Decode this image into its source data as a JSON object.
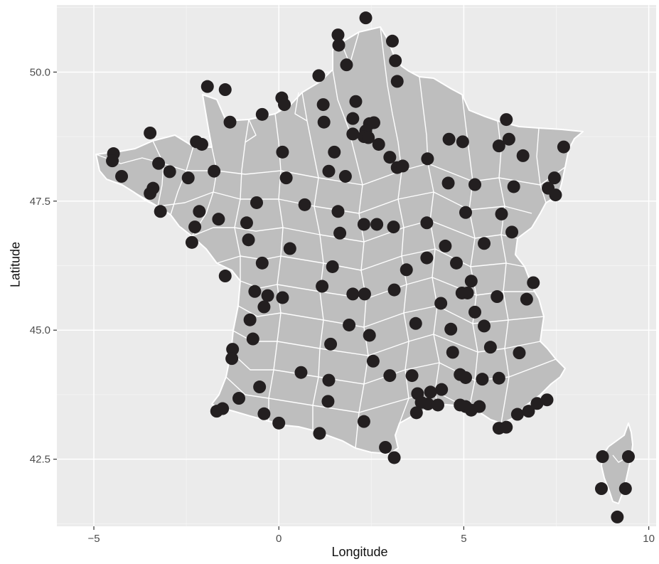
{
  "colors": {
    "panel_background": "#ebebeb",
    "grid_major": "#ffffff",
    "grid_minor": "#f4f4f4",
    "land_fill": "#bebebe",
    "boundary_stroke": "#ffffff",
    "point_fill": "#231f20",
    "tick_text": "#4d4d4d",
    "title_text": "#111111"
  },
  "chart_data": {
    "type": "scatter",
    "xlabel": "Longitude",
    "ylabel": "Latitude",
    "xlim": [
      -6.0,
      10.2
    ],
    "ylim": [
      41.2,
      51.3
    ],
    "x_ticks": [
      -5,
      0,
      5,
      10
    ],
    "x_tick_labels": [
      "−5",
      "0",
      "5",
      "10"
    ],
    "y_ticks": [
      42.5,
      45.0,
      47.5,
      50.0
    ],
    "y_tick_labels": [
      "42.5",
      "45.0",
      "47.5",
      "50.0"
    ],
    "grid": true,
    "basemap": "France departments (grey polygons with white boundaries)",
    "points": [
      [
        2.35,
        51.05
      ],
      [
        1.6,
        50.72
      ],
      [
        1.62,
        50.52
      ],
      [
        3.07,
        50.6
      ],
      [
        3.15,
        50.22
      ],
      [
        1.83,
        50.14
      ],
      [
        3.2,
        49.82
      ],
      [
        1.08,
        49.93
      ],
      [
        -1.93,
        49.72
      ],
      [
        -1.45,
        49.66
      ],
      [
        0.08,
        49.5
      ],
      [
        0.15,
        49.37
      ],
      [
        -0.45,
        49.18
      ],
      [
        1.2,
        49.37
      ],
      [
        2.08,
        49.43
      ],
      [
        -1.32,
        49.03
      ],
      [
        1.22,
        49.03
      ],
      [
        2.0,
        49.1
      ],
      [
        2.45,
        49.0
      ],
      [
        2.57,
        49.02
      ],
      [
        2.35,
        48.86
      ],
      [
        2.3,
        48.75
      ],
      [
        2.42,
        48.73
      ],
      [
        2.0,
        48.8
      ],
      [
        2.7,
        48.6
      ],
      [
        -3.48,
        48.82
      ],
      [
        -2.23,
        48.65
      ],
      [
        -2.08,
        48.6
      ],
      [
        -4.47,
        48.42
      ],
      [
        -4.5,
        48.28
      ],
      [
        -4.25,
        47.98
      ],
      [
        -3.25,
        48.23
      ],
      [
        -2.95,
        48.07
      ],
      [
        -2.45,
        47.95
      ],
      [
        -3.4,
        47.75
      ],
      [
        -3.48,
        47.65
      ],
      [
        -3.2,
        47.3
      ],
      [
        -1.75,
        48.08
      ],
      [
        0.1,
        48.45
      ],
      [
        1.5,
        48.45
      ],
      [
        1.35,
        48.08
      ],
      [
        1.8,
        47.98
      ],
      [
        0.2,
        47.95
      ],
      [
        3.0,
        48.35
      ],
      [
        3.2,
        48.15
      ],
      [
        3.35,
        48.18
      ],
      [
        4.02,
        48.32
      ],
      [
        4.6,
        48.7
      ],
      [
        4.97,
        48.65
      ],
      [
        6.15,
        49.08
      ],
      [
        6.22,
        48.7
      ],
      [
        5.95,
        48.57
      ],
      [
        6.6,
        48.38
      ],
      [
        7.7,
        48.55
      ],
      [
        7.45,
        47.95
      ],
      [
        7.28,
        47.75
      ],
      [
        7.48,
        47.62
      ],
      [
        6.35,
        47.78
      ],
      [
        5.3,
        47.82
      ],
      [
        4.58,
        47.85
      ],
      [
        -2.15,
        47.3
      ],
      [
        -1.63,
        47.15
      ],
      [
        -2.27,
        47.0
      ],
      [
        -2.35,
        46.7
      ],
      [
        -0.87,
        47.08
      ],
      [
        -0.6,
        47.47
      ],
      [
        0.7,
        47.43
      ],
      [
        1.6,
        47.3
      ],
      [
        2.3,
        47.05
      ],
      [
        2.65,
        47.05
      ],
      [
        3.1,
        47.0
      ],
      [
        4.0,
        47.08
      ],
      [
        5.05,
        47.28
      ],
      [
        6.02,
        47.25
      ],
      [
        -0.82,
        46.75
      ],
      [
        0.3,
        46.58
      ],
      [
        1.65,
        46.88
      ],
      [
        6.3,
        46.9
      ],
      [
        5.55,
        46.68
      ],
      [
        4.5,
        46.63
      ],
      [
        4.0,
        46.4
      ],
      [
        3.45,
        46.17
      ],
      [
        4.8,
        46.3
      ],
      [
        -0.45,
        46.3
      ],
      [
        -1.45,
        46.05
      ],
      [
        -0.65,
        45.75
      ],
      [
        -0.3,
        45.67
      ],
      [
        0.1,
        45.63
      ],
      [
        -0.4,
        45.45
      ],
      [
        1.45,
        46.23
      ],
      [
        1.17,
        45.85
      ],
      [
        2.0,
        45.7
      ],
      [
        2.32,
        45.7
      ],
      [
        3.12,
        45.78
      ],
      [
        5.2,
        45.95
      ],
      [
        6.88,
        45.92
      ],
      [
        4.95,
        45.72
      ],
      [
        5.1,
        45.72
      ],
      [
        5.9,
        45.65
      ],
      [
        6.7,
        45.6
      ],
      [
        4.38,
        45.52
      ],
      [
        5.3,
        45.35
      ],
      [
        5.55,
        45.08
      ],
      [
        3.7,
        45.13
      ],
      [
        4.65,
        45.02
      ],
      [
        -0.78,
        45.2
      ],
      [
        -0.7,
        44.83
      ],
      [
        1.9,
        45.1
      ],
      [
        2.45,
        44.9
      ],
      [
        1.4,
        44.73
      ],
      [
        -1.25,
        44.63
      ],
      [
        -1.27,
        44.45
      ],
      [
        2.55,
        44.4
      ],
      [
        4.7,
        44.57
      ],
      [
        5.72,
        44.67
      ],
      [
        6.5,
        44.56
      ],
      [
        0.6,
        44.18
      ],
      [
        -0.52,
        43.9
      ],
      [
        1.35,
        44.03
      ],
      [
        3.0,
        44.12
      ],
      [
        3.6,
        44.12
      ],
      [
        4.9,
        44.14
      ],
      [
        5.05,
        44.08
      ],
      [
        5.5,
        44.05
      ],
      [
        5.95,
        44.07
      ],
      [
        4.4,
        43.85
      ],
      [
        3.75,
        43.77
      ],
      [
        4.1,
        43.8
      ],
      [
        -1.08,
        43.68
      ],
      [
        -1.68,
        43.43
      ],
      [
        -1.52,
        43.48
      ],
      [
        -0.4,
        43.38
      ],
      [
        1.33,
        43.62
      ],
      [
        3.85,
        43.6
      ],
      [
        4.03,
        43.57
      ],
      [
        4.3,
        43.55
      ],
      [
        3.72,
        43.4
      ],
      [
        4.9,
        43.55
      ],
      [
        5.05,
        43.52
      ],
      [
        5.2,
        43.45
      ],
      [
        5.42,
        43.52
      ],
      [
        5.95,
        43.1
      ],
      [
        6.15,
        43.12
      ],
      [
        6.45,
        43.37
      ],
      [
        6.75,
        43.43
      ],
      [
        6.98,
        43.58
      ],
      [
        7.25,
        43.65
      ],
      [
        0.0,
        43.2
      ],
      [
        2.3,
        43.23
      ],
      [
        1.1,
        43.0
      ],
      [
        2.88,
        42.73
      ],
      [
        3.12,
        42.53
      ],
      [
        8.75,
        42.55
      ],
      [
        9.45,
        42.55
      ],
      [
        8.72,
        41.93
      ],
      [
        9.37,
        41.93
      ],
      [
        9.15,
        41.38
      ]
    ]
  }
}
